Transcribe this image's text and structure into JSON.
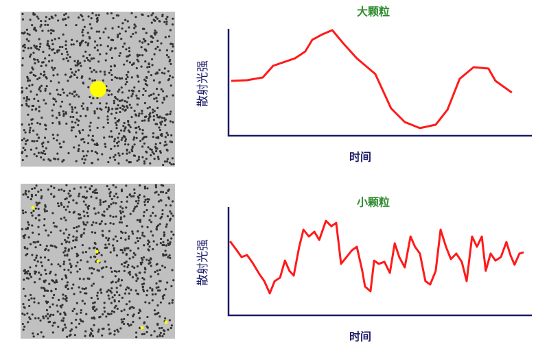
{
  "chart_data": [
    {
      "type": "line",
      "title": "大颗粒",
      "x_label": "时间",
      "y_label": "散射光强",
      "color": "#ff1a1a",
      "xlim": [
        0,
        100
      ],
      "ylim": [
        0,
        100
      ],
      "x": [
        0.9,
        6.1,
        11.3,
        14.7,
        21.9,
        25.3,
        27.6,
        31,
        34.2,
        37.8,
        42.3,
        48.4,
        53.6,
        58.1,
        63.1,
        68.3,
        72.2,
        76.2,
        80.8,
        85.7,
        88,
        93.4
      ],
      "values": [
        51.3,
        51.9,
        54.5,
        65.4,
        72.4,
        78.8,
        89.7,
        94.9,
        98.7,
        86.5,
        72.4,
        57.7,
        25.6,
        12.8,
        7.1,
        10.3,
        24.4,
        53.2,
        64.1,
        62.8,
        51.3,
        40.4
      ]
    },
    {
      "type": "line",
      "title": "小颗粒",
      "x_label": "时间",
      "y_label": "散射光强",
      "color": "#ff1a1a",
      "xlim": [
        0,
        100
      ],
      "ylim": [
        0,
        100
      ],
      "x": [
        0.5,
        2.7,
        4.3,
        6.1,
        7.9,
        10.2,
        11.8,
        13.6,
        15.2,
        17,
        18.6,
        20.1,
        21.5,
        23.3,
        24.7,
        26.5,
        28.3,
        29.9,
        32.1,
        33.9,
        35.5,
        37.1,
        38.9,
        40.7,
        42.3,
        44.1,
        45,
        46.8,
        48,
        49.5,
        51.4,
        53.2,
        54.8,
        56.3,
        58.1,
        60,
        61.5,
        63.1,
        64.9,
        66.5,
        68.3,
        69.9,
        71.7,
        73.3,
        75.1,
        76.9,
        78.5,
        80.3,
        81.9,
        83.5,
        84.8,
        86.4,
        88,
        89.8,
        91.6,
        93,
        94.3,
        95.9,
        97.3
      ],
      "values": [
        68.4,
        60.1,
        53.8,
        55.7,
        48.7,
        38,
        31.6,
        20.3,
        31.6,
        34.8,
        50.6,
        41.1,
        36.7,
        63.3,
        79.1,
        72.8,
        77.2,
        69.6,
        87.3,
        82.3,
        85.4,
        47.5,
        53.8,
        60.1,
        63.3,
        41.1,
        26.6,
        22.2,
        50.6,
        47.5,
        49.4,
        39.2,
        66.5,
        53.8,
        44.3,
        72.8,
        63.3,
        57,
        31.6,
        28.5,
        41.1,
        79.1,
        63.3,
        51.9,
        57,
        49.4,
        31.6,
        72.8,
        63.3,
        72.8,
        41.1,
        57,
        50.6,
        53.8,
        67.7,
        55.1,
        46.8,
        57,
        58.2
      ]
    }
  ]
}
